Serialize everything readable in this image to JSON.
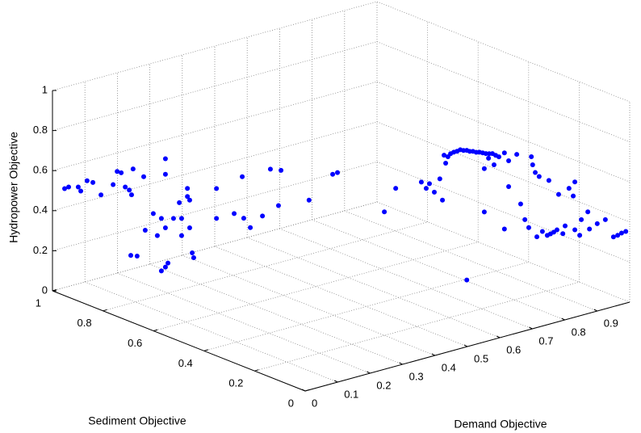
{
  "chart_data": {
    "type": "scatter3d",
    "xlabel": "Demand Objective",
    "ylabel": "Sediment Objective",
    "zlabel": "Hydropower Objective",
    "xlim": [
      0,
      1
    ],
    "ylim": [
      0,
      1
    ],
    "zlim": [
      0,
      1
    ],
    "xticks": [
      0,
      0.1,
      0.2,
      0.3,
      0.4,
      0.5,
      0.6,
      0.7,
      0.8,
      0.9
    ],
    "yticks": [
      0,
      0.2,
      0.4,
      0.6,
      0.8,
      1
    ],
    "zticks": [
      0,
      0.2,
      0.4,
      0.6,
      0.8,
      1
    ],
    "grid": true,
    "series": [
      {
        "color": "#0000ff",
        "x": [
          0,
          0,
          0,
          0,
          0,
          0,
          0,
          0,
          0,
          0,
          0,
          0,
          0,
          0,
          0,
          0,
          0,
          0,
          0,
          0,
          0,
          0,
          0,
          0,
          0,
          0,
          0,
          0,
          0,
          0,
          0,
          0,
          0,
          0,
          0,
          0,
          0,
          0,
          0,
          0,
          0,
          0,
          0,
          0,
          0.1,
          0.1,
          0.1,
          0.1,
          0.2,
          0.2,
          0.244,
          0.279,
          0.358,
          0.373,
          0.383,
          0.398,
          0.415,
          0.423,
          0.428,
          0.433,
          0.44,
          0.448,
          0.458,
          0.468,
          0.478,
          0.488,
          0.498,
          0.507,
          0.517,
          0.527,
          0.537,
          0.547,
          0.557,
          0.567,
          0.577,
          0.587,
          0.597,
          0.614,
          0.627,
          0.552,
          0.565,
          0.582,
          0.627,
          0.652,
          0.664,
          0.677,
          0.689,
          0.697,
          0.701,
          0.709,
          0.721,
          0.714,
          0.731,
          0.746,
          0.756,
          0.766,
          0.776,
          0.794,
          0.801,
          0.813,
          0.826,
          0.831,
          0.846,
          0.851,
          0.871,
          0.876,
          0.9,
          0.925,
          0.95,
          0.963,
          0.975,
          0.988,
          0.751,
          0.781,
          0.831,
          0.552,
          0.614,
          0.498
        ],
        "y": [
          0.952,
          0.936,
          0.898,
          0.888,
          0.863,
          0.84,
          0.808,
          0.76,
          0.744,
          0.728,
          0.712,
          0.696,
          0.681,
          0.687,
          0.639,
          0.69,
          0.665,
          0.633,
          0.601,
          0.585,
          0.569,
          0.553,
          0.553,
          0.553,
          0.569,
          0.553,
          0.543,
          0.521,
          0.498,
          0.489,
          0.489,
          0.466,
          0.466,
          0.457,
          0.457,
          0.447,
          0.441,
          0.351,
          0.351,
          0.281,
          0.249,
          0.243,
          0.217,
          0.169,
          0.266,
          0.224,
          0.234,
          0.113,
          0.148,
          0.129,
          0,
          0,
          0,
          0,
          0,
          0,
          0,
          0,
          0,
          0,
          0,
          0,
          0,
          0,
          0,
          0,
          0,
          0,
          0,
          0,
          0,
          0,
          0,
          0,
          0,
          0,
          0,
          0,
          0,
          0,
          0,
          0,
          0,
          0,
          0,
          0,
          0,
          0,
          0,
          0,
          0,
          0,
          0,
          0,
          0,
          0,
          0,
          0,
          0,
          0,
          0,
          0,
          0,
          0,
          0,
          0,
          0,
          0,
          0,
          0,
          0,
          0,
          0,
          0,
          0,
          0,
          0,
          0
        ],
        "z": [
          0.534,
          0.55,
          0.569,
          0.554,
          0.618,
          0.621,
          0.575,
          0.65,
          0.724,
          0.725,
          0.662,
          0.655,
          0.768,
          0.636,
          0.75,
          0.332,
          0.341,
          0.486,
          0.585,
          0.483,
          0.577,
          0.538,
          0.883,
          0.805,
          0.315,
          0.342,
          0.367,
          0.601,
          0.691,
          0.617,
          0.531,
          0.778,
          0.738,
          0.586,
          0.724,
          0.466,
          0.445,
          0.835,
          0.686,
          0.745,
          0.945,
          0.741,
          0.707,
          0.789,
          0.93,
          0.945,
          0.764,
          0.852,
          0.919,
          0.937,
          0.786,
          0.888,
          0.884,
          0.846,
          0.865,
          0.816,
          0.875,
          0.765,
          0.987,
          0.945,
          0.974,
          0.986,
          0.989,
          0.989,
          0.992,
          0.984,
          0.98,
          0.971,
          0.967,
          0.958,
          0.954,
          0.946,
          0.938,
          0.933,
          0.929,
          0.916,
          0.904,
          0.916,
          0.871,
          0.649,
          0.911,
          0.871,
          0.742,
          0.892,
          0.639,
          0.555,
          0.51,
          0.86,
          0.818,
          0.776,
          0.751,
          0.453,
          0.472,
          0.446,
          0.449,
          0.453,
          0.46,
          0.433,
          0.469,
          0.651,
          0.607,
          0.436,
          0.402,
          0.478,
          0.508,
          0.42,
          0.436,
          0.445,
          0.348,
          0.35,
          0.356,
          0.358,
          0.718,
          0.635,
          0.675,
          0.865,
          0.536,
          0.333
        ]
      }
    ]
  }
}
